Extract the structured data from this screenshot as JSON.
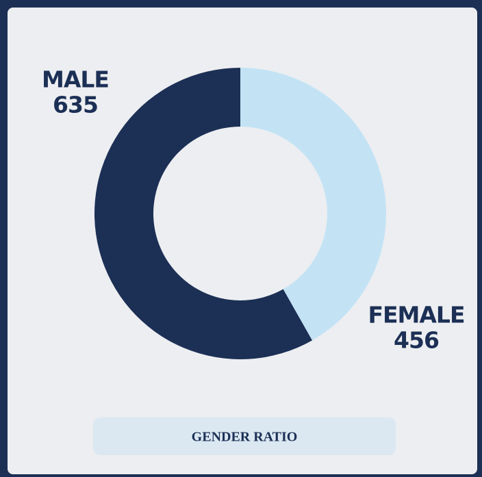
{
  "chart_data": {
    "type": "donut",
    "title": "GENDER RATIO",
    "categories": [
      "FEMALE",
      "MALE"
    ],
    "values": [
      456,
      635
    ],
    "colors": [
      "#c3e3f5",
      "#1c2f55"
    ]
  }
}
